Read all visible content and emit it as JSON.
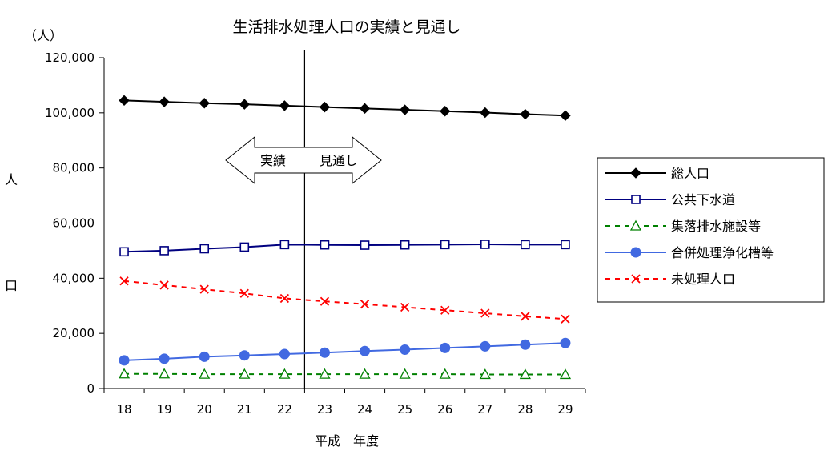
{
  "chart_data": {
    "type": "line",
    "title": "生活排水処理人口の実績と見通し",
    "unit_label": "（人）",
    "ylabel": [
      "人",
      "口"
    ],
    "xlabel": "平成　年度",
    "categories": [
      "18",
      "19",
      "20",
      "21",
      "22",
      "23",
      "24",
      "25",
      "26",
      "27",
      "28",
      "29"
    ],
    "ylim": [
      0,
      120000
    ],
    "yticks": [
      0,
      20000,
      40000,
      60000,
      80000,
      100000,
      120000
    ],
    "ytick_labels": [
      "0",
      "20,000",
      "40,000",
      "60,000",
      "80,000",
      "100,000",
      "120,000"
    ],
    "grid": false,
    "legend_position": "right",
    "divider_after_category": "22",
    "annotation": {
      "left": "実績",
      "right": "見通し"
    },
    "series": [
      {
        "name": "総人口",
        "color": "#000000",
        "dash": "solid",
        "marker": "diamond",
        "values": [
          104500,
          104000,
          103500,
          103100,
          102600,
          102100,
          101600,
          101100,
          100600,
          100100,
          99500,
          99000
        ]
      },
      {
        "name": "公共下水道",
        "color": "#000080",
        "dash": "solid",
        "marker": "square-open",
        "values": [
          49600,
          50000,
          50700,
          51300,
          52200,
          52100,
          52000,
          52100,
          52200,
          52300,
          52200,
          52200
        ]
      },
      {
        "name": "集落排水施設等",
        "color": "#008000",
        "dash": "dashed",
        "marker": "triangle-open",
        "values": [
          5300,
          5300,
          5200,
          5200,
          5200,
          5200,
          5200,
          5200,
          5200,
          5100,
          5100,
          5100
        ]
      },
      {
        "name": "合併処理浄化槽等",
        "color": "#4169E1",
        "dash": "solid",
        "marker": "circle",
        "values": [
          10200,
          10800,
          11500,
          12000,
          12500,
          13000,
          13600,
          14100,
          14700,
          15300,
          15900,
          16500
        ]
      },
      {
        "name": "未処理人口",
        "color": "#FF0000",
        "dash": "dashed",
        "marker": "x",
        "values": [
          39000,
          37500,
          36000,
          34500,
          32700,
          31600,
          30600,
          29500,
          28400,
          27300,
          26200,
          25200
        ]
      }
    ]
  }
}
